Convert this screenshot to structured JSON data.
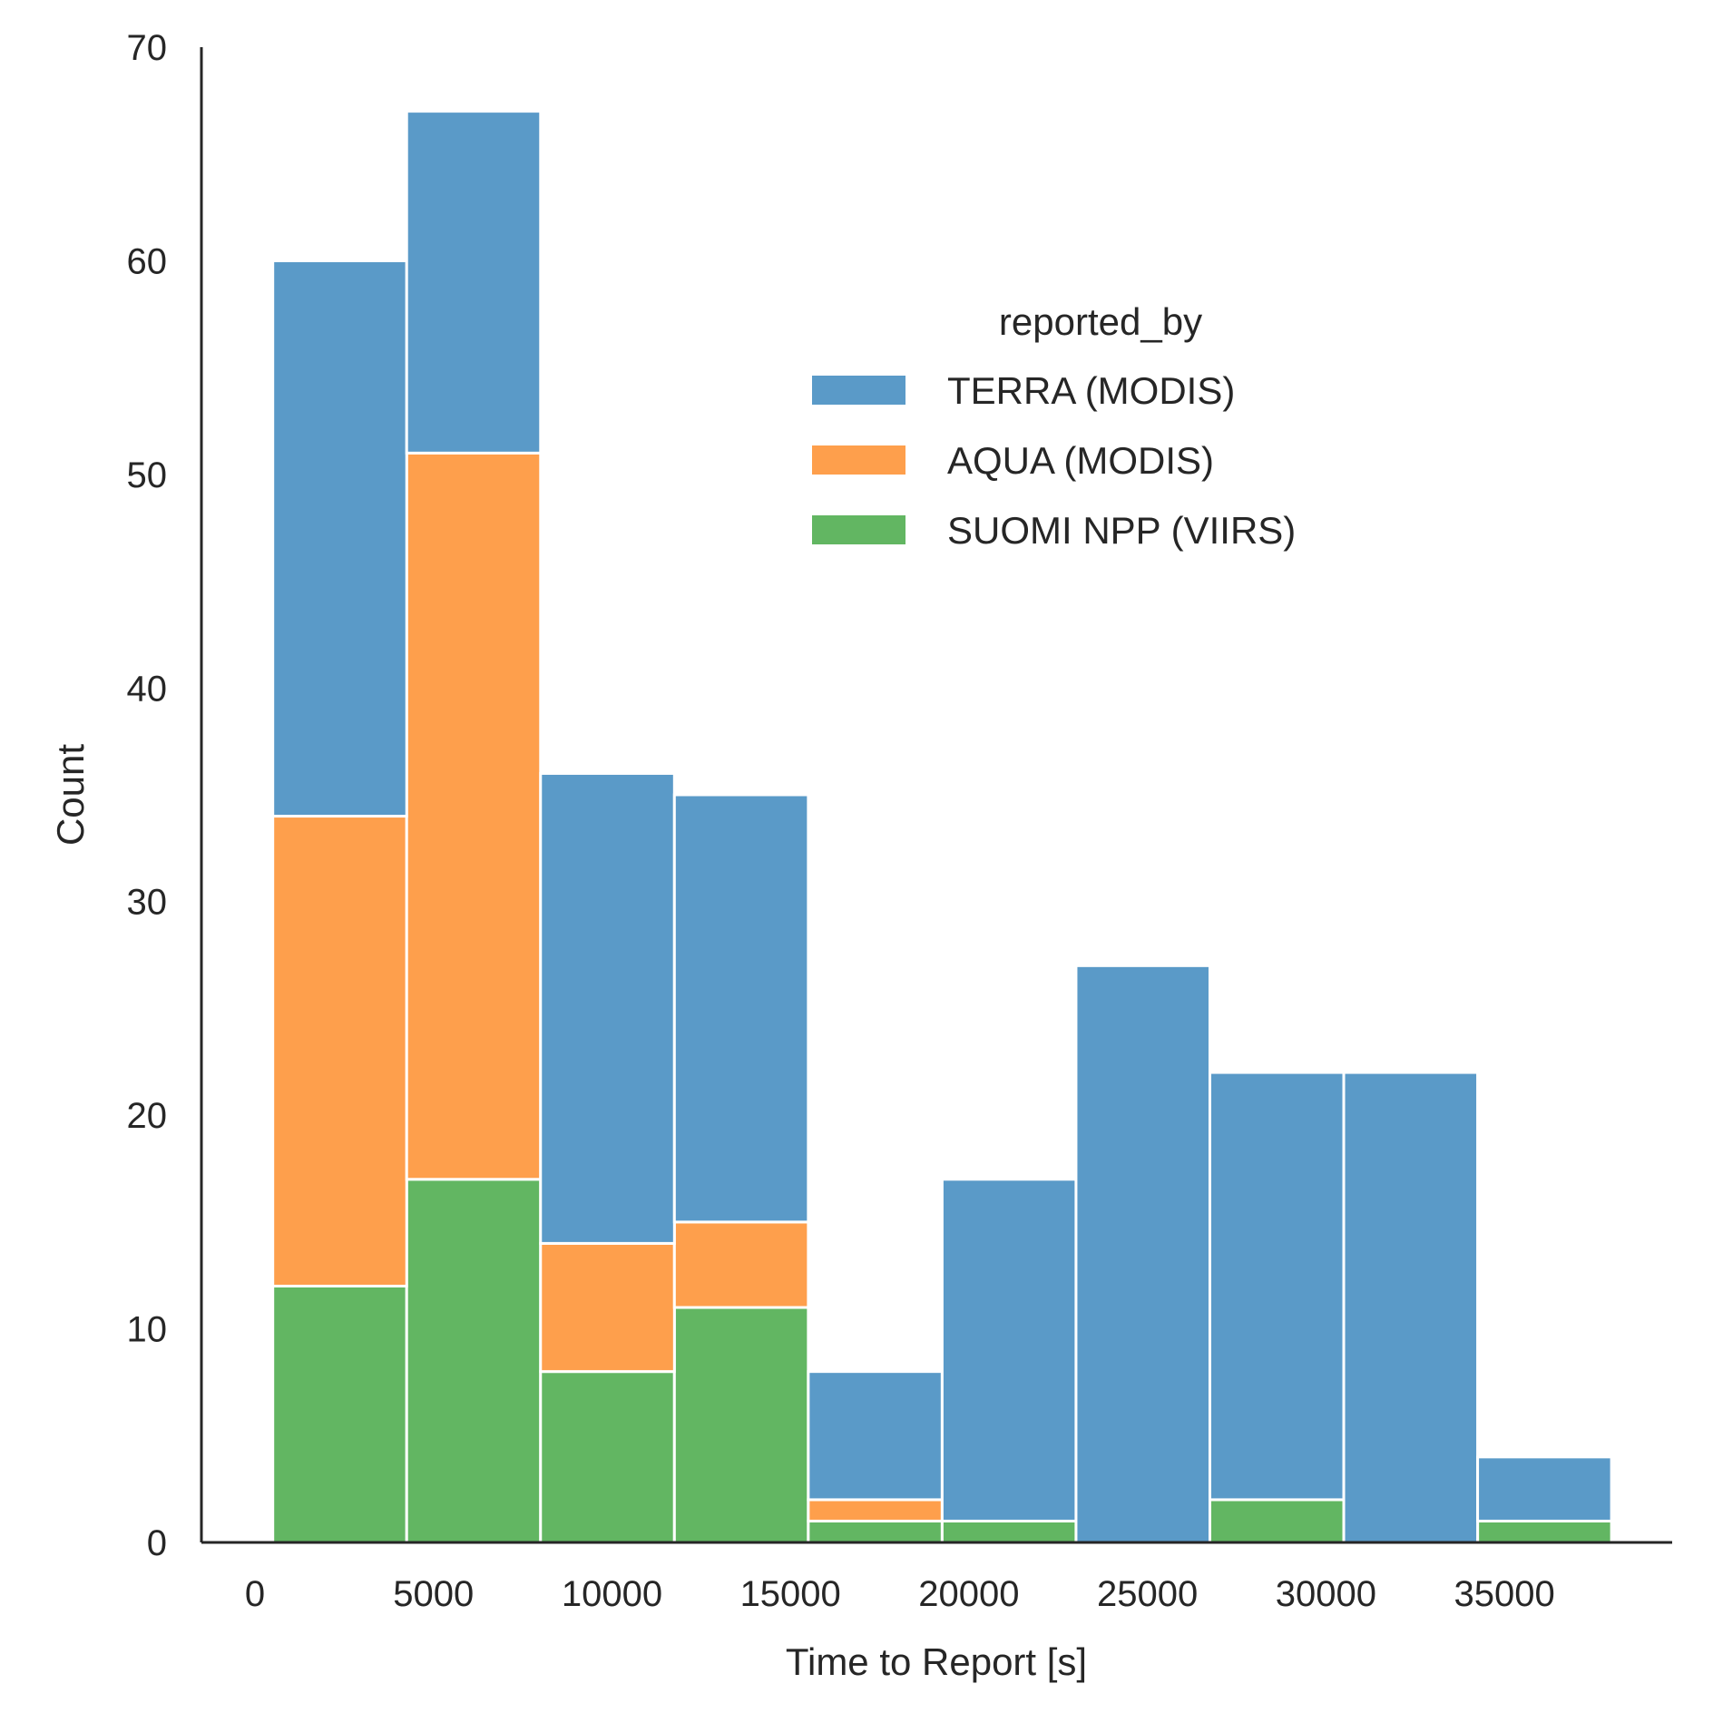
{
  "chart_data": {
    "type": "bar",
    "stacked": true,
    "xlabel": "Time to Report [s]",
    "ylabel": "Count",
    "xlim": [
      -1500,
      39700
    ],
    "ylim": [
      0,
      70
    ],
    "xticks": [
      0,
      5000,
      10000,
      15000,
      20000,
      25000,
      30000,
      35000
    ],
    "yticks": [
      0,
      10,
      20,
      30,
      40,
      50,
      60,
      70
    ],
    "grid": false,
    "legend": {
      "title": "reported_by",
      "position": "upper-right"
    },
    "bin_edges": [
      500,
      4250,
      8000,
      11750,
      15500,
      19250,
      23000,
      26750,
      30500,
      34250,
      38000
    ],
    "series": [
      {
        "name": "SUOMI NPP (VIIRS)",
        "color": "#62b662",
        "values": [
          12,
          17,
          8,
          11,
          1,
          1,
          0,
          2,
          0,
          1
        ]
      },
      {
        "name": "AQUA (MODIS)",
        "color": "#fe9f4c",
        "values": [
          22,
          34,
          6,
          4,
          1,
          0,
          0,
          0,
          0,
          0
        ]
      },
      {
        "name": "TERRA (MODIS)",
        "color": "#5a9ac8",
        "values": [
          26,
          16,
          22,
          20,
          6,
          16,
          27,
          20,
          22,
          3
        ]
      }
    ],
    "legend_order": [
      "TERRA (MODIS)",
      "AQUA (MODIS)",
      "SUOMI NPP (VIIRS)"
    ]
  }
}
